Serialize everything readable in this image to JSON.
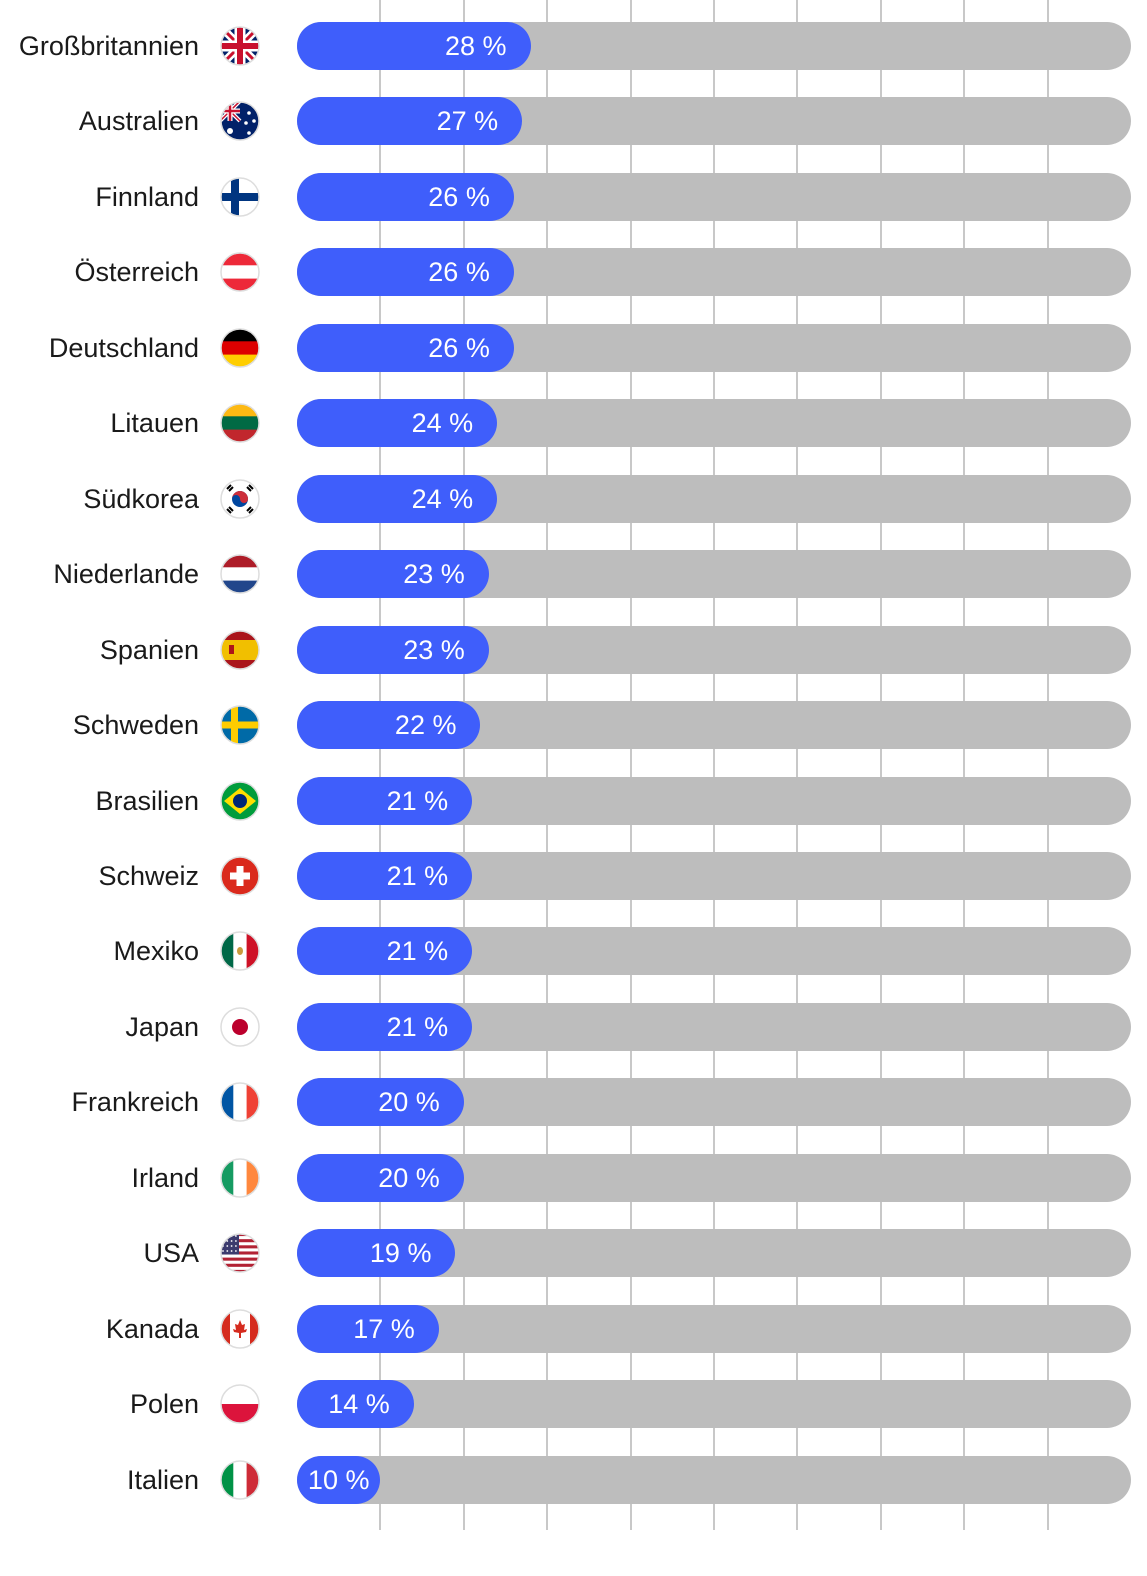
{
  "chart_data": {
    "type": "bar",
    "orientation": "horizontal",
    "categories": [
      "Großbritannien",
      "Australien",
      "Finnland",
      "Österreich",
      "Deutschland",
      "Litauen",
      "Südkorea",
      "Niederlande",
      "Spanien",
      "Schweden",
      "Brasilien",
      "Schweiz",
      "Mexiko",
      "Japan",
      "Frankreich",
      "Irland",
      "USA",
      "Kanada",
      "Polen",
      "Italien"
    ],
    "values": [
      28,
      27,
      26,
      26,
      26,
      24,
      24,
      23,
      23,
      22,
      21,
      21,
      21,
      21,
      20,
      20,
      19,
      17,
      14,
      10
    ],
    "value_labels": [
      "28 %",
      "27 %",
      "26 %",
      "26 %",
      "26 %",
      "24 %",
      "24 %",
      "23 %",
      "23 %",
      "22 %",
      "21 %",
      "21 %",
      "21 %",
      "21 %",
      "20 %",
      "20 %",
      "19 %",
      "17 %",
      "14 %",
      "10 %"
    ],
    "flags": [
      "flag-uk-icon",
      "flag-australia-icon",
      "flag-finland-icon",
      "flag-austria-icon",
      "flag-germany-icon",
      "flag-lithuania-icon",
      "flag-south-korea-icon",
      "flag-netherlands-icon",
      "flag-spain-icon",
      "flag-sweden-icon",
      "flag-brazil-icon",
      "flag-switzerland-icon",
      "flag-mexico-icon",
      "flag-japan-icon",
      "flag-france-icon",
      "flag-ireland-icon",
      "flag-usa-icon",
      "flag-canada-icon",
      "flag-poland-icon",
      "flag-italy-icon"
    ],
    "xlim": [
      0,
      100
    ],
    "grid": true,
    "gridlines_at": [
      10,
      20,
      30,
      40,
      50,
      60,
      70,
      80,
      90
    ],
    "colors": {
      "bar": "#3f5efb",
      "track": "#bdbdbd",
      "grid": "#c8c8c8",
      "label": "#1a1a1a",
      "value_text": "#ffffff"
    }
  }
}
